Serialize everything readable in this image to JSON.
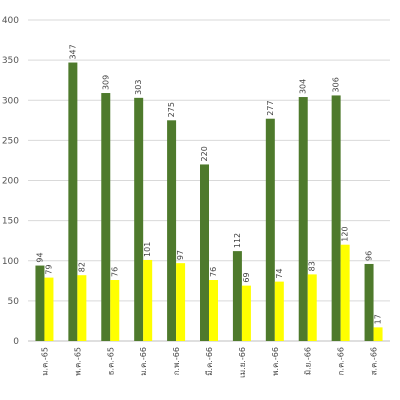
{
  "chart_data": {
    "type": "bar",
    "categories": [
      "ม.ค.-65",
      "พ.ค.-65",
      "ธ.ค.-65",
      "ม.ค.-66",
      "ก.พ.-66",
      "มี.ค.-66",
      "เม.ย.-66",
      "พ.ค.-66",
      "มิ.ย.-66",
      "ก.ค.-66",
      "ส.ค.-66"
    ],
    "series": [
      {
        "values": [
          94,
          347,
          309,
          303,
          275,
          220,
          112,
          277,
          304,
          306,
          96
        ],
        "color": "#4e7a2c"
      },
      {
        "values": [
          79,
          82,
          76,
          101,
          97,
          76,
          69,
          74,
          83,
          120,
          17
        ],
        "color": "#ffff00"
      }
    ],
    "title": "",
    "xlabel": "",
    "ylabel": "",
    "ylim": [
      0,
      400
    ],
    "yticks": [
      0,
      50,
      100,
      150,
      200,
      250,
      300,
      350,
      400
    ],
    "grid": true,
    "legend": "none"
  }
}
